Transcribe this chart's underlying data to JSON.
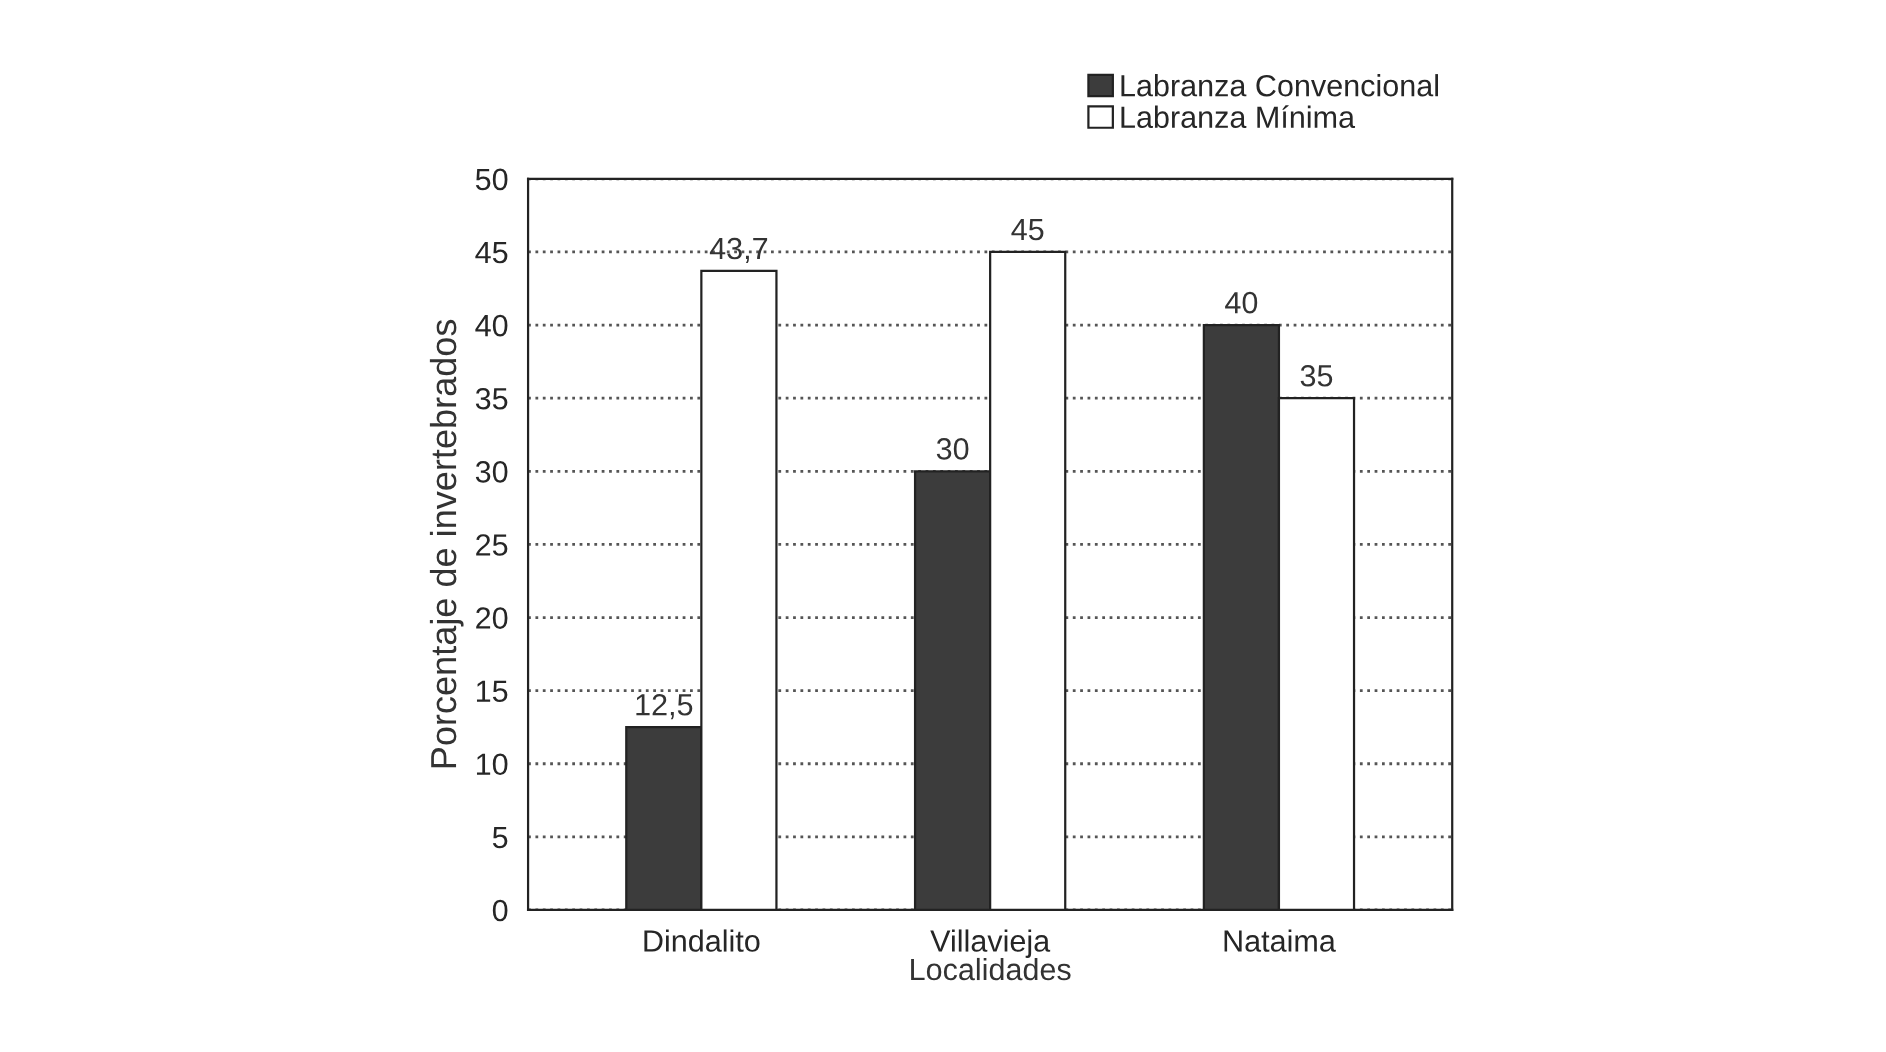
{
  "chart_data": {
    "type": "bar",
    "ylabel": "Porcentaje de invertebrados",
    "xlabel": "Localidades",
    "categories": [
      "Dindalito",
      "Villavieja",
      "Nataima"
    ],
    "series": [
      {
        "name": "Labranza Convencional",
        "color": "#3c3c3c",
        "values": [
          12.5,
          30,
          40
        ],
        "value_labels": [
          "12,5",
          "30",
          "40"
        ]
      },
      {
        "name": "Labranza Mínima",
        "color": "#ffffff",
        "values": [
          43.7,
          45,
          35
        ],
        "value_labels": [
          "43,7",
          "45",
          "35"
        ]
      }
    ],
    "ylim": [
      0,
      50
    ],
    "yticks": [
      0,
      5,
      10,
      15,
      20,
      25,
      30,
      35,
      40,
      45,
      50
    ],
    "grid": "y",
    "legend": "top right"
  }
}
